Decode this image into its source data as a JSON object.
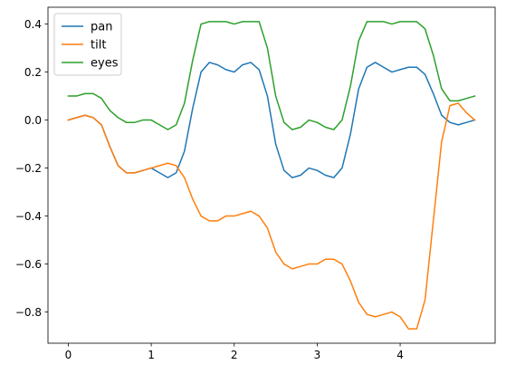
{
  "chart_data": {
    "type": "line",
    "title": "",
    "xlabel": "",
    "ylabel": "",
    "xlim": [
      -0.245,
      5.145
    ],
    "ylim": [
      -0.93,
      0.47
    ],
    "xticks": [
      0,
      1,
      2,
      3,
      4
    ],
    "yticks": [
      -0.8,
      -0.6,
      -0.4,
      -0.2,
      0.0,
      0.2,
      0.4
    ],
    "xtick_labels": [
      "0",
      "1",
      "2",
      "3",
      "4"
    ],
    "ytick_labels": [
      "−0.8",
      "−0.6",
      "−0.4",
      "−0.2",
      "0.0",
      "0.2",
      "0.4"
    ],
    "grid": false,
    "legend_position": "upper-left",
    "x": [
      0.0,
      0.1,
      0.2,
      0.3,
      0.4,
      0.5,
      0.6,
      0.7,
      0.8,
      0.9,
      1.0,
      1.1,
      1.2,
      1.3,
      1.4,
      1.5,
      1.6,
      1.7,
      1.8,
      1.9,
      2.0,
      2.1,
      2.2,
      2.3,
      2.4,
      2.5,
      2.6,
      2.7,
      2.8,
      2.9,
      3.0,
      3.1,
      3.2,
      3.3,
      3.4,
      3.5,
      3.6,
      3.7,
      3.8,
      3.9,
      4.0,
      4.1,
      4.2,
      4.3,
      4.4,
      4.5,
      4.6,
      4.7,
      4.8,
      4.9
    ],
    "series": [
      {
        "name": "pan",
        "color": "#1f77b4",
        "values": [
          0.0,
          0.01,
          0.02,
          0.01,
          -0.02,
          -0.11,
          -0.19,
          -0.22,
          -0.22,
          -0.21,
          -0.2,
          -0.22,
          -0.24,
          -0.22,
          -0.13,
          0.05,
          0.2,
          0.24,
          0.23,
          0.21,
          0.2,
          0.23,
          0.24,
          0.21,
          0.1,
          -0.1,
          -0.21,
          -0.24,
          -0.23,
          -0.2,
          -0.21,
          -0.23,
          -0.24,
          -0.2,
          -0.06,
          0.13,
          0.22,
          0.24,
          0.22,
          0.2,
          0.21,
          0.22,
          0.22,
          0.19,
          0.11,
          0.02,
          -0.01,
          -0.02,
          -0.01,
          0.0
        ]
      },
      {
        "name": "tilt",
        "color": "#ff7f0e",
        "values": [
          0.0,
          0.01,
          0.02,
          0.01,
          -0.02,
          -0.11,
          -0.19,
          -0.22,
          -0.22,
          -0.21,
          -0.2,
          -0.19,
          -0.18,
          -0.19,
          -0.24,
          -0.33,
          -0.4,
          -0.42,
          -0.42,
          -0.4,
          -0.4,
          -0.39,
          -0.38,
          -0.4,
          -0.45,
          -0.55,
          -0.6,
          -0.62,
          -0.61,
          -0.6,
          -0.6,
          -0.58,
          -0.58,
          -0.6,
          -0.67,
          -0.76,
          -0.81,
          -0.82,
          -0.81,
          -0.8,
          -0.82,
          -0.87,
          -0.87,
          -0.75,
          -0.42,
          -0.09,
          0.06,
          0.07,
          0.03,
          0.0
        ]
      },
      {
        "name": "eyes",
        "color": "#2ca02c",
        "values": [
          0.1,
          0.1,
          0.11,
          0.11,
          0.09,
          0.04,
          0.01,
          -0.01,
          -0.01,
          0.0,
          0.0,
          -0.02,
          -0.04,
          -0.02,
          0.07,
          0.25,
          0.4,
          0.41,
          0.41,
          0.41,
          0.4,
          0.41,
          0.41,
          0.41,
          0.3,
          0.1,
          -0.01,
          -0.04,
          -0.03,
          0.0,
          -0.01,
          -0.03,
          -0.04,
          0.0,
          0.14,
          0.33,
          0.41,
          0.41,
          0.41,
          0.4,
          0.41,
          0.41,
          0.41,
          0.38,
          0.27,
          0.13,
          0.08,
          0.08,
          0.09,
          0.1
        ]
      }
    ]
  }
}
